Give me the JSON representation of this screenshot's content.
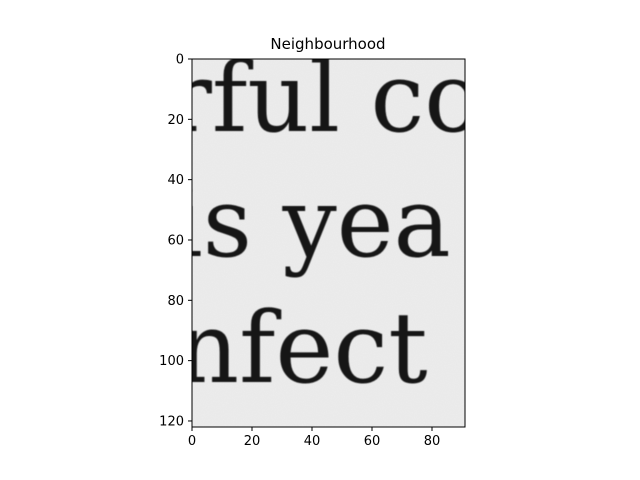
{
  "chart_data": {
    "type": "heatmap",
    "title": "Neighbourhood",
    "xlabel": "",
    "ylabel": "",
    "xlim": [
      0,
      91
    ],
    "ylim": [
      122,
      0
    ],
    "x_ticks": [
      0,
      20,
      40,
      60,
      80
    ],
    "y_ticks": [
      0,
      20,
      40,
      60,
      80,
      100,
      120
    ],
    "colormap": "gray",
    "grid": false,
    "legend": "none",
    "image_content": "Grayscale crop of scanned printed text showing word fragments: 'rful co', 'is yea', 'nfect'",
    "text_fragments": [
      "rful co",
      "is yea",
      "nfect"
    ]
  }
}
